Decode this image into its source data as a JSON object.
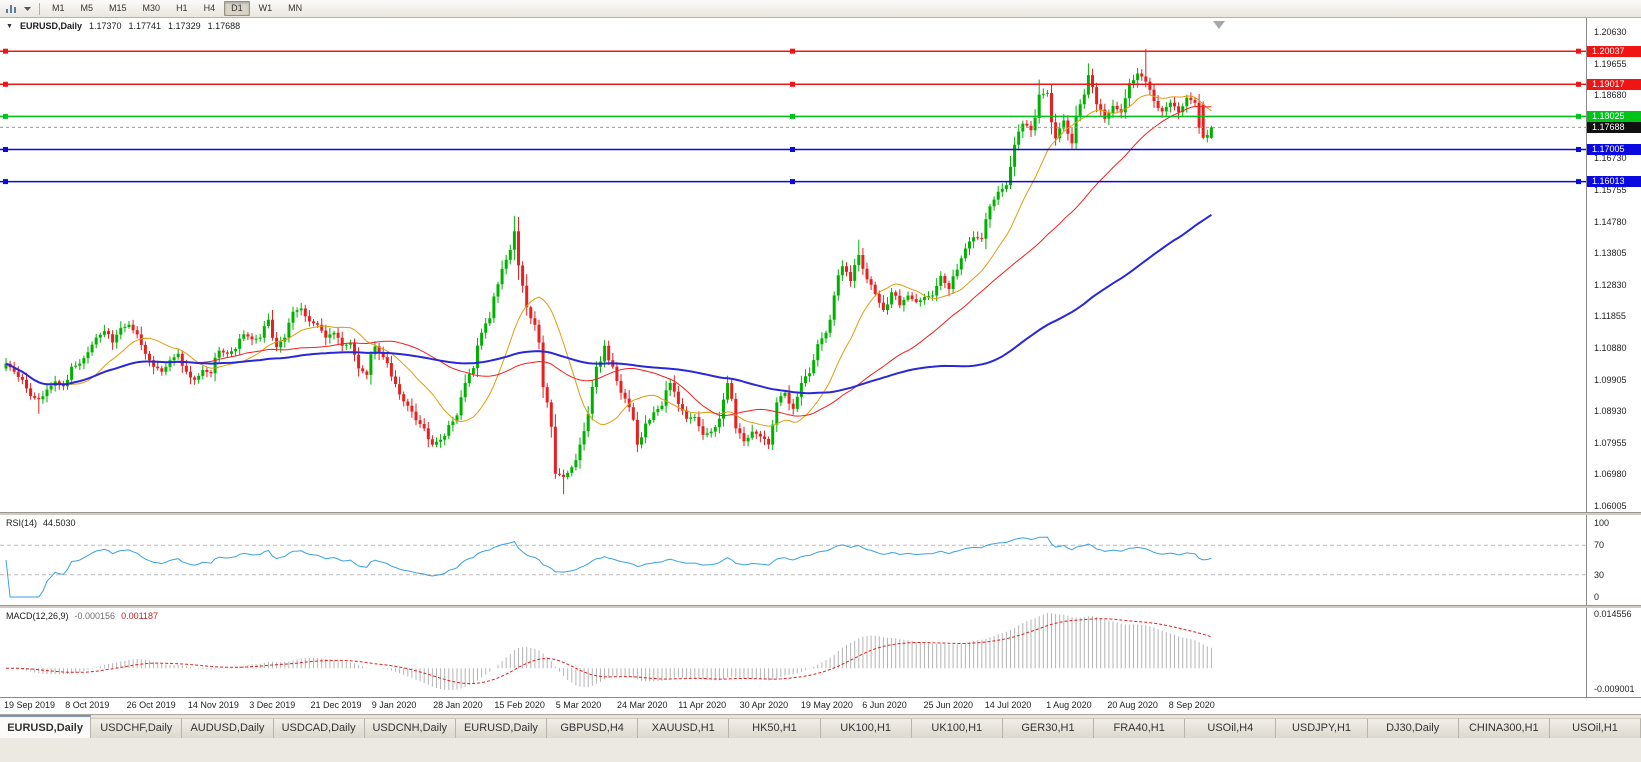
{
  "toolbar": {
    "timeframes": [
      "M1",
      "M5",
      "M15",
      "M30",
      "H1",
      "H4",
      "D1",
      "W1",
      "MN"
    ],
    "active": "D1"
  },
  "window": {
    "tabs": [
      "EURUSD,Daily",
      "USDCHF,Daily",
      "AUDUSD,Daily",
      "USDCAD,Daily",
      "USDCNH,Daily",
      "EURUSD,Daily",
      "GBPUSD,H4",
      "XAUUSD,H1",
      "HK50,H1",
      "UK100,H1",
      "UK100,H1",
      "GER30,H1",
      "FRA40,H1",
      "USOil,H4",
      "USDJPY,H1",
      "DJ30,Daily",
      "CHINA300,H1",
      "USOil,H1"
    ],
    "active_tab_index": 0
  },
  "chart_data": {
    "type": "candlestick",
    "symbol": "EURUSD",
    "timeframe": "Daily",
    "title": {
      "symbol_period": "EURUSD,Daily",
      "open": "1.17370",
      "high": "1.17741",
      "low": "1.17329",
      "close": "1.17688"
    },
    "axes": {
      "price_top": 1.2063,
      "price_bottom": 1.06005,
      "price_ticks": [
        "1.20630",
        "1.19655",
        "1.18680",
        "1.17705",
        "1.16730",
        "1.15755",
        "1.14780",
        "1.13805",
        "1.12830",
        "1.11855",
        "1.10880",
        "1.09905",
        "1.08930",
        "1.07955",
        "1.06980",
        "1.06005"
      ],
      "date_ticks": [
        "19 Sep 2019",
        "8 Oct 2019",
        "26 Oct 2019",
        "14 Nov 2019",
        "3 Dec 2019",
        "21 Dec 2019",
        "9 Jan 2020",
        "28 Jan 2020",
        "15 Feb 2020",
        "5 Mar 2020",
        "24 Mar 2020",
        "11 Apr 2020",
        "30 Apr 2020",
        "19 May 2020",
        "6 Jun 2020",
        "25 Jun 2020",
        "14 Jul 2020",
        "1 Aug 2020",
        "20 Aug 2020",
        "8 Sep 2020"
      ],
      "rsi_ticks": [
        "100",
        "70",
        "30",
        "0"
      ],
      "macd_ticks": [
        "0.014556",
        "-0.009001"
      ]
    },
    "closes": [
      1.104,
      1.1015,
      1.099,
      1.094,
      1.093,
      1.096,
      1.0985,
      1.097,
      1.103,
      1.104,
      1.1075,
      1.112,
      1.114,
      1.1105,
      1.115,
      1.116,
      1.113,
      1.107,
      1.103,
      1.1015,
      1.105,
      1.107,
      1.1015,
      1.099,
      1.102,
      1.101,
      1.108,
      1.107,
      1.1085,
      1.113,
      1.1115,
      1.112,
      1.1175,
      1.109,
      1.112,
      1.12,
      1.121,
      1.117,
      1.116,
      1.112,
      1.1135,
      1.1095,
      1.1105,
      1.1025,
      1.1005,
      1.1093,
      1.106,
      1.1,
      1.0945,
      1.091,
      1.0865,
      1.084,
      1.079,
      1.0805,
      1.085,
      1.088,
      1.098,
      1.1026,
      1.1135,
      1.118,
      1.1285,
      1.136,
      1.1448,
      1.128,
      1.118,
      1.1105,
      1.092,
      1.07,
      1.069,
      1.072,
      1.079,
      1.0885,
      1.103,
      1.1095,
      1.103,
      1.095,
      1.0905,
      1.079,
      1.0855,
      1.089,
      1.091,
      1.098,
      1.0915,
      1.087,
      1.0875,
      1.082,
      1.083,
      1.087,
      1.098,
      1.084,
      1.08,
      1.083,
      1.0815,
      1.079,
      1.092,
      1.095,
      1.09,
      1.098,
      1.101,
      1.11,
      1.1135,
      1.125,
      1.134,
      1.1295,
      1.1375,
      1.13,
      1.1255,
      1.1205,
      1.126,
      1.122,
      1.125,
      1.123,
      1.1245,
      1.125,
      1.131,
      1.127,
      1.133,
      1.1395,
      1.143,
      1.1425,
      1.1525,
      1.157,
      1.159,
      1.1715,
      1.178,
      1.176,
      1.187,
      1.1875,
      1.1735,
      1.179,
      1.172,
      1.184,
      1.193,
      1.184,
      1.1795,
      1.1835,
      1.1815,
      1.1905,
      1.1935,
      1.191,
      1.185,
      1.1818,
      1.1845,
      1.1815,
      1.186,
      1.1845,
      1.1737,
      1.17688
    ],
    "bar_overrides": [
      {
        "i": 4,
        "l": 1.0885
      },
      {
        "i": 62,
        "h": 1.1495
      },
      {
        "i": 68,
        "l": 1.0637
      },
      {
        "i": 104,
        "h": 1.1422
      },
      {
        "i": 126,
        "h": 1.1916
      },
      {
        "i": 132,
        "h": 1.1966
      },
      {
        "i": 139,
        "h": 1.2011
      },
      {
        "i": 146,
        "o": 1.184,
        "h": 1.1849,
        "l": 1.1732,
        "c": 1.1737
      },
      {
        "i": 147,
        "o": 1.1737,
        "h": 1.17741,
        "l": 1.17329,
        "c": 1.17688
      }
    ],
    "horizontal_lines": [
      {
        "value": 1.20037,
        "label": "1.20037",
        "color": "#f01515",
        "type": "resistance"
      },
      {
        "value": 1.19017,
        "label": "1.19017",
        "color": "#f01515",
        "type": "resistance"
      },
      {
        "value": 1.18025,
        "label": "1.18025",
        "color": "#00c41a",
        "type": "pivot"
      },
      {
        "value": 1.17005,
        "label": "1.17005",
        "color": "#0a0ae0",
        "type": "support"
      },
      {
        "value": 1.16013,
        "label": "1.16013",
        "color": "#0a0ae0",
        "type": "support"
      }
    ],
    "current_price": {
      "value": 1.17688,
      "label": "1.17688"
    },
    "moving_averages": [
      {
        "name": "ma-fast-orange",
        "period": 8,
        "color": "#e09c10",
        "width": 1
      },
      {
        "name": "ma-medium-red",
        "period": 22,
        "color": "#f02020",
        "width": 1
      },
      {
        "name": "ma-slow-blue",
        "period": 55,
        "color": "#2828d8",
        "width": 2
      }
    ],
    "candle_up_color": "#00b200",
    "candle_down_color": "#e82020",
    "indicators": {
      "rsi": {
        "name": "RSI(14)",
        "value": "44.5030",
        "period": 14,
        "color": "#3aa2e0",
        "levels": [
          70,
          30
        ]
      },
      "macd": {
        "name": "MACD(12,26,9)",
        "values": [
          "-0.000156",
          "0.001187"
        ],
        "fast": 12,
        "slow": 26,
        "signal": 9,
        "hist_color": "#b4b4b4",
        "signal_color": "#e02020"
      }
    }
  }
}
